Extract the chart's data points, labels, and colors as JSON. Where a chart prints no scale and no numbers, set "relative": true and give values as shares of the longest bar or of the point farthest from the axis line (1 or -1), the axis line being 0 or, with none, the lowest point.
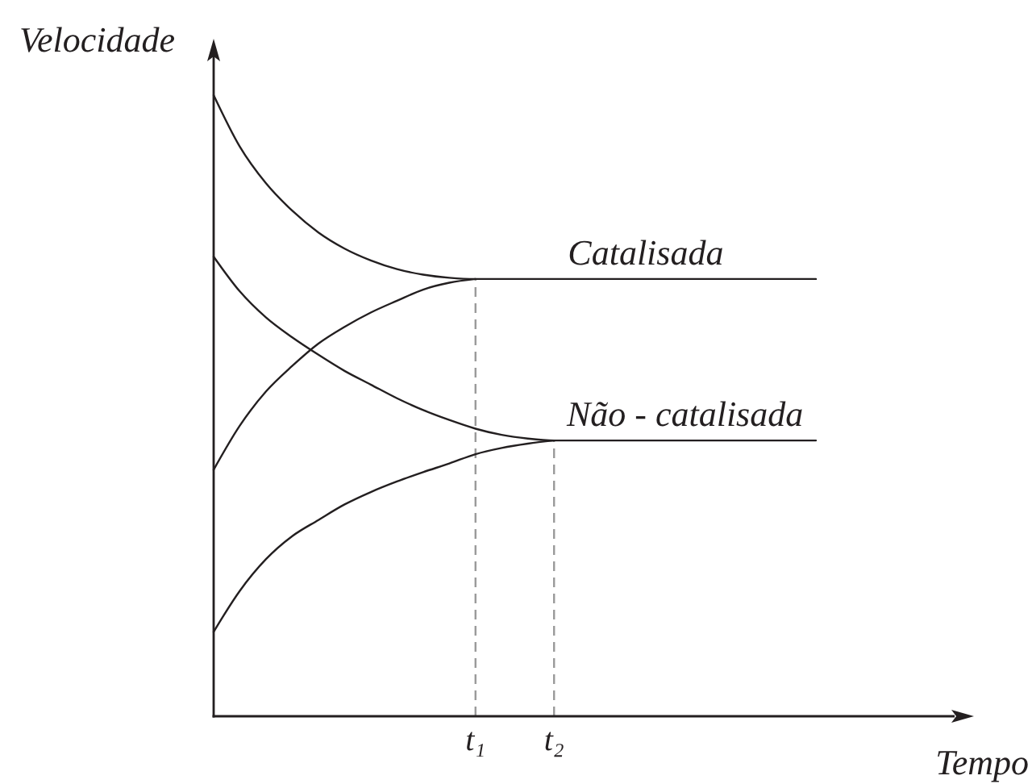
{
  "chart_data": {
    "type": "line",
    "xlabel": "Tempo",
    "ylabel": "Velocidade",
    "relative": true,
    "categories": [
      null,
      null,
      null,
      null,
      null,
      null,
      null,
      null,
      null,
      null,
      "t₁",
      null,
      null,
      "t₂",
      null,
      null,
      null,
      null,
      null,
      null,
      null,
      null,
      null,
      null
    ],
    "series": [
      {
        "name": "Catalisada",
        "color": "#231f20",
        "values": [
          1,
          0.917,
          0.858,
          0.814,
          0.779,
          0.753,
          0.734,
          0.72,
          0.711,
          0.706,
          0.704,
          0.704,
          0.704,
          0.704,
          0.704,
          0.704,
          0.704,
          0.704,
          0.704,
          0.704,
          0.704,
          0.704,
          0.704,
          0.704
        ]
      },
      {
        "color": "#231f20",
        "values": [
          0.397,
          0.468,
          0.523,
          0.564,
          0.6,
          0.627,
          0.65,
          0.669,
          0.687,
          0.698,
          0.704,
          null,
          null,
          null,
          null,
          null,
          null,
          null,
          null,
          null,
          null,
          null,
          null,
          null
        ]
      },
      {
        "name": "Não - catalisada",
        "color": "#231f20",
        "values": [
          0.74,
          0.684,
          0.642,
          0.61,
          0.582,
          0.556,
          0.534,
          0.512,
          0.493,
          0.477,
          0.463,
          0.453,
          0.447,
          0.444,
          0.444,
          0.444,
          0.444,
          0.444,
          0.444,
          0.444,
          0.444,
          0.444,
          0.444,
          0.444
        ]
      },
      {
        "color": "#231f20",
        "values": [
          0.136,
          0.202,
          0.253,
          0.29,
          0.316,
          0.341,
          0.361,
          0.378,
          0.393,
          0.407,
          0.422,
          0.432,
          0.439,
          0.444,
          null,
          null,
          null,
          null,
          null,
          null,
          null,
          null,
          null,
          null
        ]
      }
    ],
    "ref_lines": [
      {
        "axis": "x",
        "value": "t₁",
        "color": "#9a9a9a",
        "line_style": "dashed"
      },
      {
        "axis": "x",
        "value": "t₂",
        "color": "#9a9a9a",
        "line_style": "dashed"
      }
    ]
  }
}
